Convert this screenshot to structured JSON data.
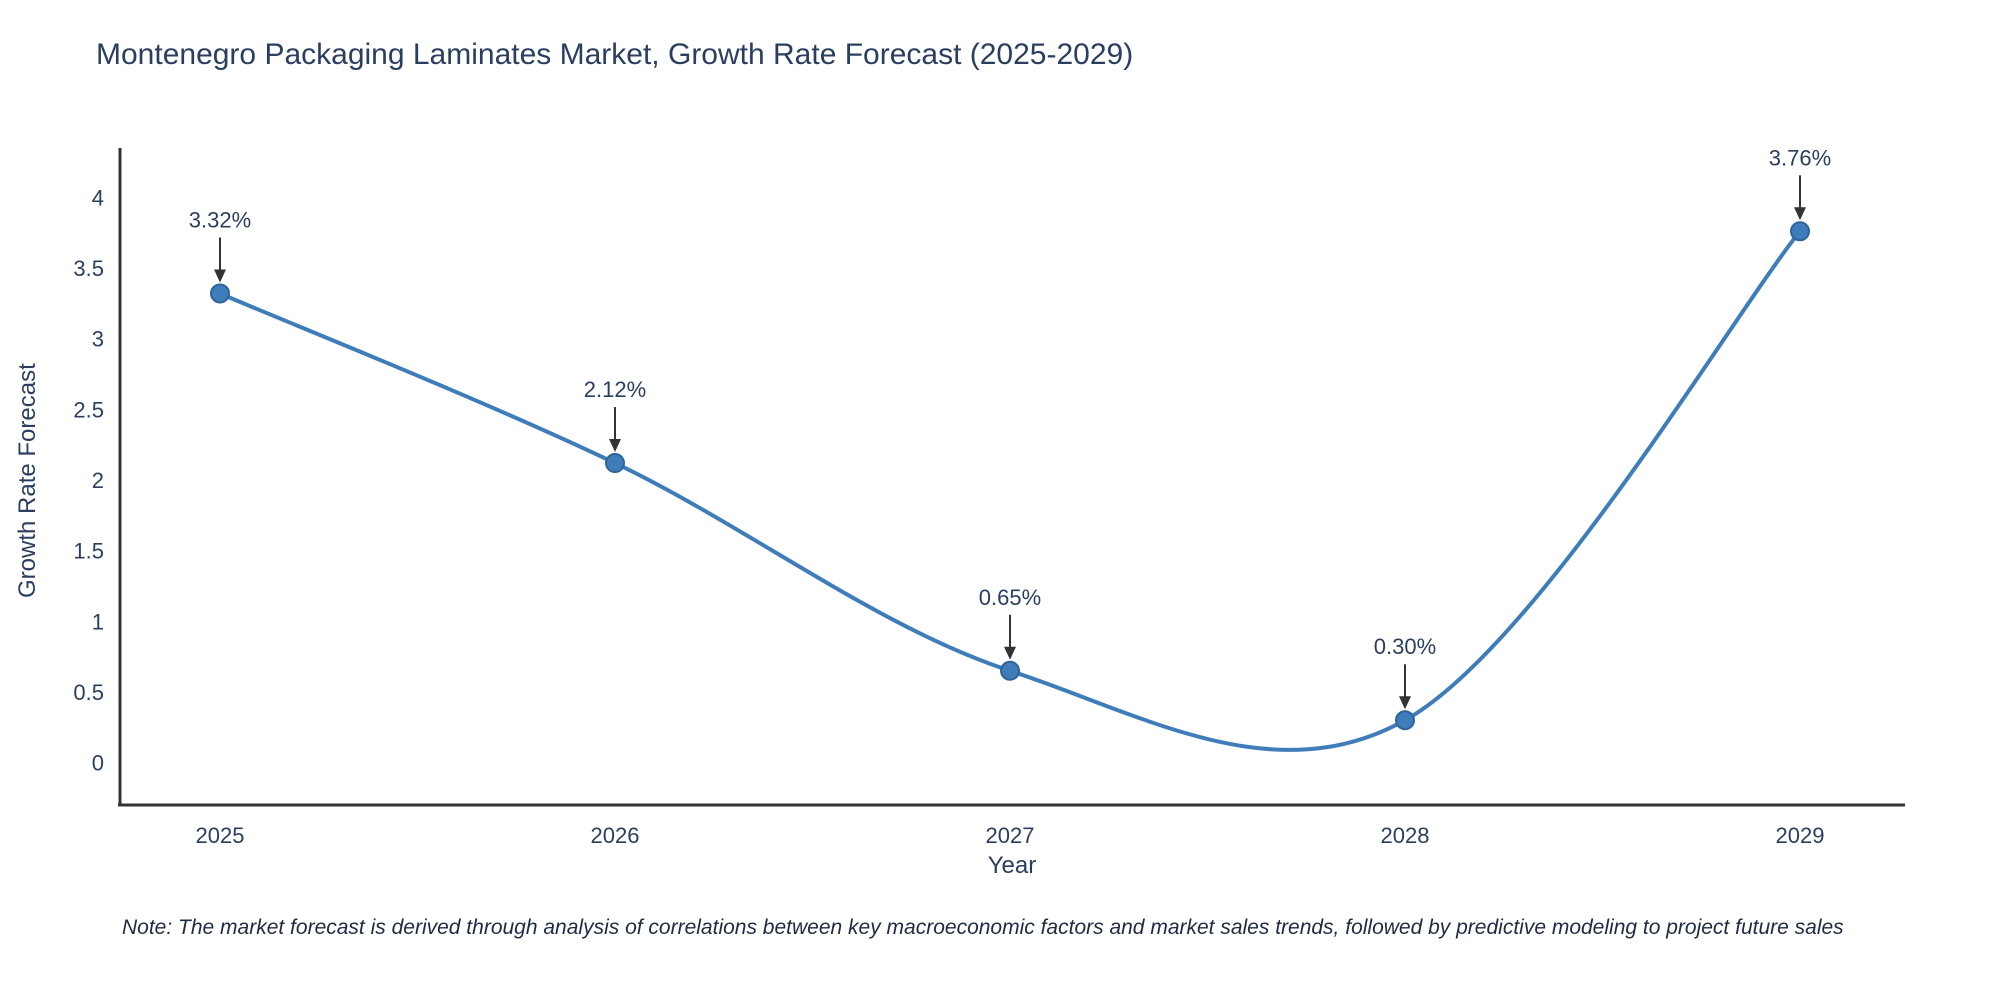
{
  "note": "Note: The market forecast is derived through analysis of correlations between key macroeconomic factors and market sales trends, followed by predictive modeling to project future sales",
  "chart_data": {
    "type": "line",
    "line_shape": "spline",
    "title": "Montenegro Packaging Laminates Market, Growth Rate Forecast (2025-2029)",
    "xlabel": "Year",
    "ylabel": "Growth Rate Forecast",
    "categories": [
      "2025",
      "2026",
      "2027",
      "2028",
      "2029"
    ],
    "values": [
      3.32,
      2.12,
      0.65,
      0.3,
      3.76
    ],
    "point_labels": [
      "3.32%",
      "2.12%",
      "0.65%",
      "0.30%",
      "3.76%"
    ],
    "ylim": [
      -0.3,
      4.3
    ],
    "yticks": [
      0,
      0.5,
      1,
      1.5,
      2,
      2.5,
      3,
      3.5,
      4
    ],
    "grid": false,
    "legend": "none",
    "markers": true,
    "colors": {
      "line": "#3f7dba",
      "marker": "#3f7dba",
      "marker_edge": "#2e6399",
      "axis": "#333333",
      "text": "#2a3f5f",
      "annotation_arrow": "#333333"
    }
  }
}
